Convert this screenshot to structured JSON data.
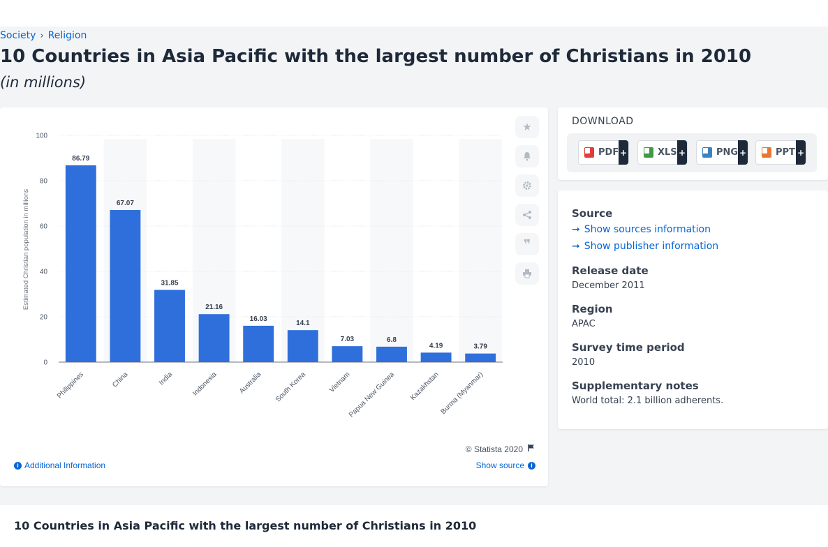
{
  "breadcrumb": {
    "item1": "Society",
    "sep": "›",
    "item2": "Religion"
  },
  "title": "10 Countries in Asia Pacific with the largest number of Christians in 2010",
  "subtitle": "(in millions)",
  "chart_data": {
    "type": "bar",
    "categories": [
      "Philippines",
      "China",
      "India",
      "Indonesia",
      "Australia",
      "South Korea",
      "Vietnam",
      "Papua New Guinea",
      "Kazakhstan",
      "Burma (Myanmar)"
    ],
    "values": [
      86.79,
      67.07,
      31.85,
      21.16,
      16.03,
      14.1,
      7.03,
      6.8,
      4.19,
      3.79
    ],
    "value_labels": [
      "86.79",
      "67.07",
      "31.85",
      "21.16",
      "16.03",
      "14.1",
      "7.03",
      "6.8",
      "4.19",
      "3.79"
    ],
    "ylabel": "Estimated Christian population in millions",
    "ylim": [
      0,
      100
    ],
    "yticks": [
      "0",
      "20",
      "40",
      "60",
      "80",
      "100"
    ],
    "bar_color": "#2e6fdb",
    "grid": true
  },
  "chart_footer": {
    "copyright": "© Statista 2020",
    "additional_info": "Additional Information",
    "show_source": "Show source"
  },
  "download": {
    "heading": "DOWNLOAD",
    "buttons": [
      {
        "label": "PDF",
        "plus": "+",
        "color": "#e23b3b"
      },
      {
        "label": "XLS",
        "plus": "+",
        "color": "#3f9a45"
      },
      {
        "label": "PNG",
        "plus": "+",
        "color": "#3b82c4"
      },
      {
        "label": "PPT",
        "plus": "+",
        "color": "#e8772e"
      }
    ]
  },
  "info": {
    "source_label": "Source",
    "show_sources": "Show sources information",
    "show_publisher": "Show publisher information",
    "release_label": "Release date",
    "release_value": "December 2011",
    "region_label": "Region",
    "region_value": "APAC",
    "survey_label": "Survey time period",
    "survey_value": "2010",
    "notes_label": "Supplementary notes",
    "notes_value": "World total: 2.1 billion adherents."
  },
  "bottom_title": "10 Countries in Asia Pacific with the largest number of Christians in 2010"
}
